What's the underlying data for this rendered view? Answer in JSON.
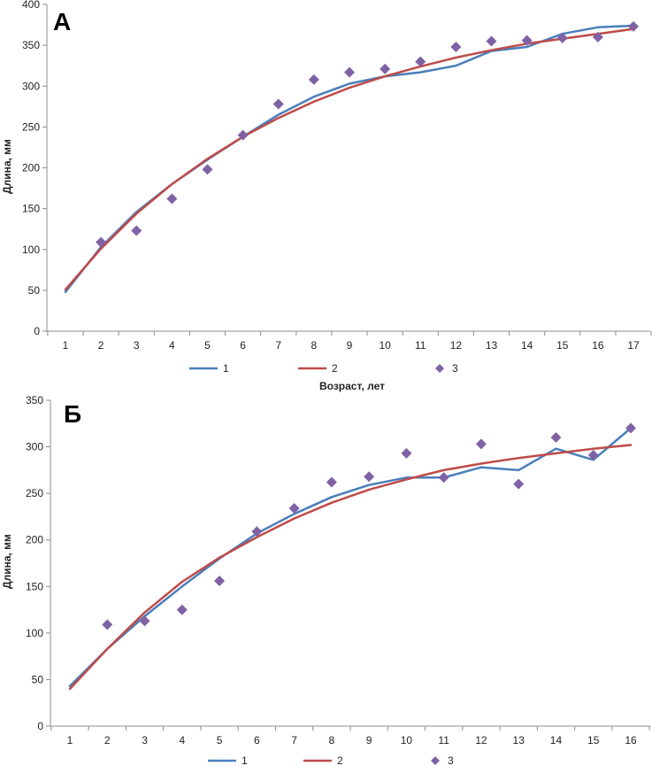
{
  "colors": {
    "series1": "#4a7ebb",
    "series2": "#be4b48",
    "series3": "#7f62a5",
    "axis": "#8c8c8c"
  },
  "chart_data": [
    {
      "type": "line",
      "panel_label": "А",
      "xlabel": "Возраст, лет",
      "ylabel": "Длина, мм",
      "x": [
        1,
        2,
        3,
        4,
        5,
        6,
        7,
        8,
        9,
        10,
        11,
        12,
        13,
        14,
        15,
        16,
        17
      ],
      "ylim": [
        0,
        400
      ],
      "yticks": [
        0,
        50,
        100,
        150,
        200,
        250,
        300,
        350,
        400
      ],
      "legend_position": "bottom",
      "series": [
        {
          "name": "1",
          "kind": "line",
          "values": [
            48,
            103,
            146,
            180,
            210,
            238,
            265,
            287,
            303,
            312,
            317,
            325,
            343,
            348,
            364,
            372,
            374
          ]
        },
        {
          "name": "2",
          "kind": "line",
          "values": [
            51,
            101,
            144,
            180,
            211,
            238,
            261,
            281,
            298,
            312,
            324,
            335,
            344,
            352,
            358,
            364,
            370
          ]
        },
        {
          "name": "3",
          "kind": "scatter",
          "values": [
            null,
            109,
            123,
            162,
            198,
            240,
            278,
            308,
            317,
            321,
            330,
            348,
            355,
            356,
            359,
            360,
            373
          ]
        }
      ]
    },
    {
      "type": "line",
      "panel_label": "Б",
      "xlabel": "",
      "ylabel": "Длина, мм",
      "x": [
        1,
        2,
        3,
        4,
        5,
        6,
        7,
        8,
        9,
        10,
        11,
        12,
        13,
        14,
        15,
        16
      ],
      "ylim": [
        0,
        350
      ],
      "yticks": [
        0,
        50,
        100,
        150,
        200,
        250,
        300,
        350
      ],
      "legend_position": "bottom",
      "series": [
        {
          "name": "1",
          "kind": "line",
          "values": [
            43,
            83,
            118,
            150,
            180,
            207,
            228,
            246,
            259,
            267,
            267,
            278,
            275,
            298,
            286,
            320
          ]
        },
        {
          "name": "2",
          "kind": "line",
          "values": [
            40,
            83,
            122,
            155,
            181,
            203,
            223,
            240,
            254,
            265,
            275,
            282,
            288,
            293,
            298,
            302
          ]
        },
        {
          "name": "3",
          "kind": "scatter",
          "values": [
            null,
            109,
            113,
            125,
            156,
            209,
            234,
            262,
            268,
            293,
            267,
            303,
            260,
            310,
            291,
            320
          ]
        }
      ]
    }
  ]
}
